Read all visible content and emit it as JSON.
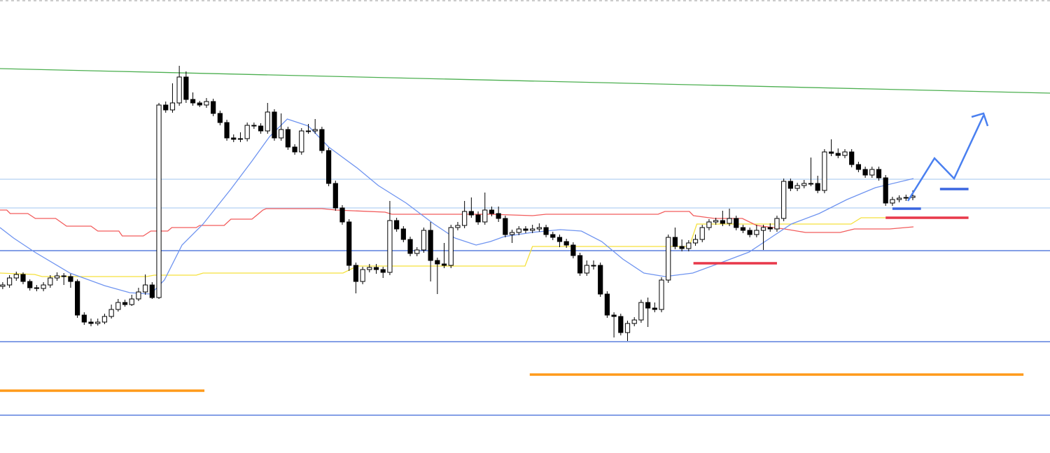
{
  "chart_data": {
    "type": "candlestick",
    "xlim": [
      -0.4,
      154.2
    ],
    "ylim": [
      0,
      647
    ],
    "up_color": "#ffffff",
    "down_color": "#000000",
    "open": [
      238,
      240,
      250,
      255,
      245,
      236,
      235,
      240,
      250,
      253,
      252,
      245,
      197,
      187,
      185,
      187,
      195,
      205,
      215,
      212,
      220,
      230,
      240,
      222,
      497,
      490,
      500,
      537,
      505,
      500,
      497,
      502,
      485,
      472,
      450,
      448,
      449,
      468,
      467,
      460,
      487,
      450,
      462,
      437,
      430,
      460,
      460,
      462,
      432,
      385,
      350,
      330,
      268,
      245,
      262,
      265,
      262,
      258,
      332,
      320,
      305,
      285,
      290,
      318,
      275,
      270,
      268,
      322,
      325,
      345,
      340,
      330,
      347,
      342,
      335,
      312,
      315,
      320,
      318,
      320,
      322,
      312,
      308,
      302,
      297,
      282,
      257,
      268,
      268,
      227,
      197,
      195,
      172,
      185,
      190,
      215,
      207,
      205,
      247,
      308,
      295,
      292,
      300,
      305,
      322,
      330,
      332,
      328,
      335,
      322,
      318,
      312,
      318,
      322,
      320,
      335,
      388,
      378,
      382,
      385,
      385,
      375,
      430,
      428,
      425,
      430,
      412,
      405,
      397,
      405,
      393,
      357,
      362,
      364,
      365
    ],
    "high": [
      244,
      254,
      259,
      258,
      248,
      240,
      244,
      254,
      258,
      257,
      256,
      248,
      201,
      192,
      192,
      199,
      212,
      220,
      219,
      226,
      236,
      255,
      244,
      500,
      502,
      528,
      553,
      545,
      515,
      503,
      507,
      506,
      489,
      476,
      455,
      458,
      472,
      472,
      471,
      500,
      491,
      485,
      466,
      441,
      464,
      470,
      477,
      466,
      436,
      389,
      354,
      334,
      272,
      266,
      270,
      270,
      266,
      360,
      336,
      324,
      309,
      294,
      322,
      330,
      279,
      300,
      326,
      330,
      360,
      365,
      345,
      372,
      352,
      352,
      339,
      319,
      324,
      324,
      326,
      328,
      326,
      316,
      312,
      306,
      301,
      286,
      275,
      275,
      272,
      231,
      201,
      199,
      189,
      194,
      219,
      222,
      215,
      251,
      312,
      322,
      305,
      304,
      312,
      326,
      334,
      336,
      346,
      349,
      339,
      326,
      322,
      326,
      326,
      328,
      339,
      392,
      392,
      386,
      390,
      422,
      396,
      434,
      448,
      435,
      434,
      434,
      416,
      409,
      409,
      409,
      397,
      366,
      368,
      369,
      375
    ],
    "low": [
      234,
      236,
      246,
      241,
      232,
      231,
      231,
      236,
      246,
      240,
      236,
      193,
      183,
      181,
      182,
      184,
      192,
      202,
      209,
      210,
      217,
      226,
      220,
      220,
      486,
      486,
      496,
      500,
      496,
      494,
      493,
      481,
      468,
      446,
      444,
      444,
      445,
      463,
      456,
      456,
      446,
      446,
      433,
      426,
      426,
      456,
      456,
      428,
      381,
      346,
      326,
      260,
      228,
      241,
      258,
      256,
      250,
      254,
      316,
      301,
      281,
      281,
      286,
      245,
      227,
      264,
      264,
      318,
      321,
      336,
      326,
      326,
      338,
      330,
      308,
      300,
      311,
      314,
      314,
      316,
      308,
      304,
      294,
      293,
      278,
      253,
      253,
      262,
      223,
      193,
      165,
      168,
      160,
      181,
      186,
      180,
      201,
      201,
      243,
      291,
      288,
      288,
      296,
      301,
      318,
      326,
      324,
      324,
      318,
      314,
      308,
      308,
      290,
      316,
      316,
      331,
      374,
      374,
      378,
      381,
      371,
      371,
      424,
      421,
      421,
      408,
      401,
      393,
      393,
      389,
      353,
      353,
      358,
      360,
      361
    ],
    "close": [
      240,
      250,
      255,
      245,
      236,
      235,
      240,
      250,
      253,
      252,
      245,
      197,
      187,
      185,
      187,
      195,
      205,
      215,
      212,
      220,
      230,
      240,
      222,
      497,
      490,
      500,
      537,
      505,
      500,
      497,
      502,
      485,
      472,
      450,
      448,
      449,
      468,
      467,
      460,
      487,
      450,
      462,
      437,
      430,
      460,
      460,
      462,
      432,
      385,
      350,
      330,
      268,
      245,
      262,
      265,
      262,
      258,
      332,
      320,
      305,
      285,
      290,
      318,
      275,
      270,
      268,
      322,
      325,
      345,
      340,
      330,
      347,
      342,
      335,
      312,
      315,
      320,
      318,
      320,
      322,
      312,
      308,
      302,
      297,
      282,
      257,
      268,
      268,
      227,
      197,
      195,
      172,
      185,
      190,
      215,
      207,
      205,
      247,
      308,
      295,
      292,
      300,
      305,
      322,
      330,
      332,
      328,
      335,
      322,
      318,
      312,
      318,
      322,
      320,
      335,
      388,
      378,
      382,
      385,
      385,
      375,
      430,
      428,
      425,
      430,
      412,
      405,
      397,
      405,
      393,
      357,
      362,
      364,
      365,
      367
    ],
    "levels": [
      {
        "color": "#b4d0f2",
        "value": 391
      },
      {
        "color": "#b4d0f2",
        "value": 350
      },
      {
        "color": "#3a66d8",
        "value": 289
      },
      {
        "color": "#3a66d8",
        "value": 159
      },
      {
        "color": "#3a66d8",
        "value": 54
      }
    ],
    "series": [
      {
        "color": "#4caf50",
        "x": [
          -0.4,
          154.2
        ],
        "values": [
          549,
          514
        ]
      },
      {
        "color": "#f5e13c",
        "x": [
          -0.4,
          4.7,
          5.8,
          21.2,
          22.3,
          28.5,
          29.5,
          50.1,
          52.2,
          76.9,
          78,
          101.1,
          102.2,
          124.9,
          126.4,
          130
        ],
        "values": [
          257,
          255,
          252,
          252,
          254,
          254,
          257,
          257,
          267,
          267,
          295,
          295,
          327,
          327,
          336,
          336
        ]
      },
      {
        "color": "#f25c5c",
        "x": [
          -0.4,
          0.6,
          1.1,
          3.7,
          4.8,
          7.8,
          9.4,
          13,
          14,
          17.1,
          17.6,
          20.7,
          21.8,
          24.3,
          24.9,
          28.5,
          29,
          32.6,
          33.6,
          36.7,
          37.7,
          38.3,
          38.8,
          47,
          49.1,
          56.3,
          57.3,
          71.8,
          78,
          80,
          96.5,
          97.5,
          101.1,
          101.7,
          104.8,
          108.9,
          111,
          115.1,
          118.2,
          123.3,
          125.4,
          129.5,
          130.6,
          134.1
        ],
        "values": [
          347,
          347,
          342,
          342,
          335,
          335,
          324,
          324,
          317,
          317,
          310,
          310,
          317,
          317,
          322,
          322,
          325,
          325,
          334,
          334,
          342,
          347,
          349,
          349,
          347,
          344,
          341,
          341,
          339,
          341,
          341,
          345,
          345,
          339,
          335,
          335,
          325,
          320,
          315,
          315,
          320,
          320,
          320,
          323
        ]
      },
      {
        "color": "#6f94f0",
        "x": [
          -0.4,
          1.6,
          4.7,
          9.9,
          15,
          18.7,
          21.8,
          23.8,
          26.4,
          29.5,
          33.6,
          36.7,
          39.3,
          41.9,
          45,
          48,
          52.2,
          55.3,
          59.4,
          63.5,
          66.6,
          69.7,
          71.8,
          73.8,
          77.9,
          82.1,
          85.2,
          88.2,
          91.3,
          94.4,
          97.5,
          101.6,
          105.8,
          109.9,
          113,
          116.1,
          120.2,
          124.3,
          128.5,
          134.1
        ],
        "values": [
          322,
          307,
          287,
          257,
          239,
          229,
          227,
          247,
          297,
          327,
          377,
          417,
          452,
          477,
          467,
          437,
          407,
          382,
          357,
          327,
          307,
          297,
          302,
          309,
          315,
          319,
          317,
          302,
          277,
          257,
          252,
          257,
          272,
          287,
          307,
          327,
          342,
          362,
          379,
          392
        ]
      }
    ],
    "segments": [
      {
        "color": "#ff9a1a",
        "x": [
          -0.4,
          29.7
        ],
        "values": [
          89,
          89
        ]
      },
      {
        "color": "#ff9a1a",
        "x": [
          77.6,
          150.3
        ],
        "values": [
          112,
          112
        ]
      },
      {
        "color": "#e8384a",
        "x": [
          101.7,
          114
        ],
        "values": [
          271,
          271
        ]
      },
      {
        "color": "#e8384a",
        "x": [
          130,
          142.2
        ],
        "values": [
          336,
          336
        ]
      },
      {
        "color": "#3a66e0",
        "x": [
          131,
          135.2
        ],
        "values": [
          349,
          349
        ]
      },
      {
        "color": "#3a66e0",
        "x": [
          138,
          142.2
        ],
        "values": [
          377,
          377
        ]
      }
    ]
  }
}
